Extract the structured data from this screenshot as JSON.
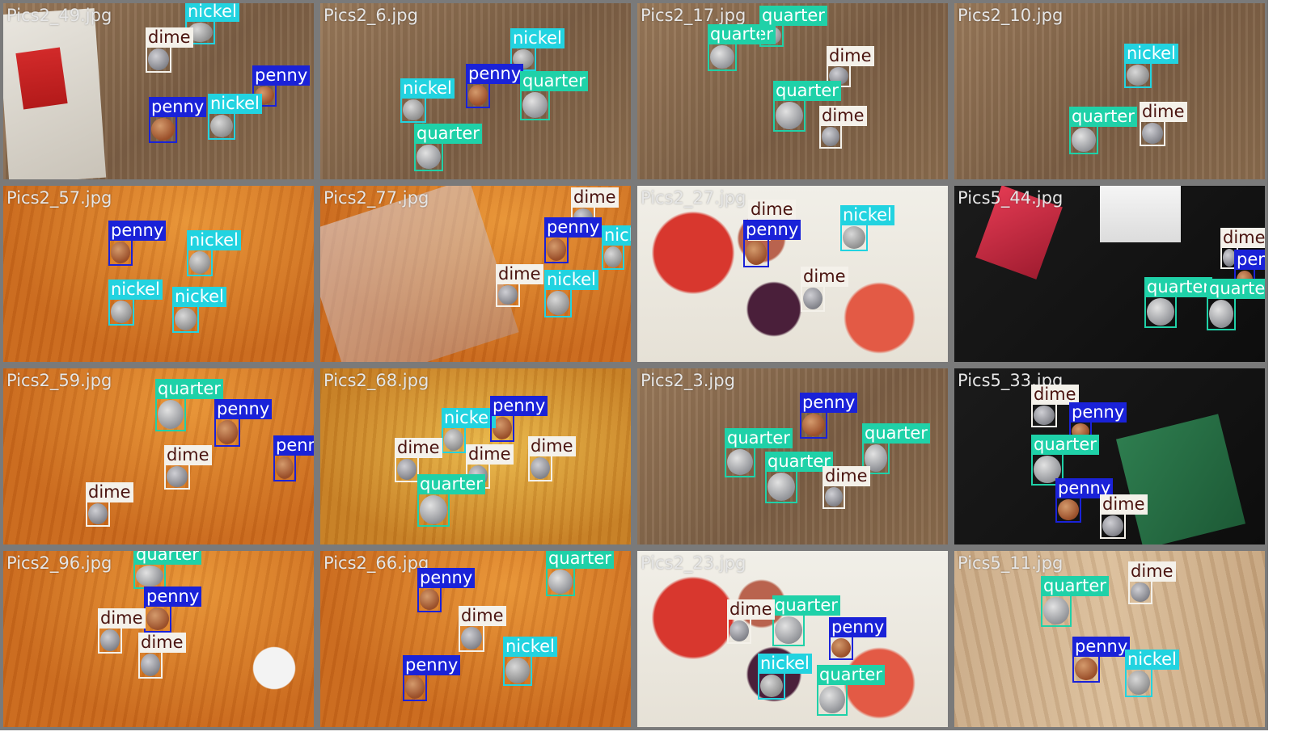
{
  "classes": {
    "penny": {
      "color": "#1a22d8",
      "text": "#ffffff"
    },
    "nickel": {
      "color": "#22d3e0",
      "text": "#ffffff"
    },
    "quarter": {
      "color": "#1fd1a8",
      "text": "#ffffff"
    },
    "dime": {
      "color": "#f4f1ea",
      "text": "#4a1410"
    }
  },
  "tiles": [
    {
      "filename": "Pics2_49.jpg",
      "background": "wood-brown",
      "detections": [
        {
          "label": "nickel"
        },
        {
          "label": "dime"
        },
        {
          "label": "penny"
        },
        {
          "label": "penny"
        },
        {
          "label": "nickel"
        }
      ]
    },
    {
      "filename": "Pics2_6.jpg",
      "background": "wood-brown",
      "detections": [
        {
          "label": "nickel"
        },
        {
          "label": "penny"
        },
        {
          "label": "quarter"
        },
        {
          "label": "nickel"
        },
        {
          "label": "quarter"
        }
      ]
    },
    {
      "filename": "Pics2_17.jpg",
      "background": "wood-brown",
      "detections": [
        {
          "label": "quarter"
        },
        {
          "label": "quarter"
        },
        {
          "label": "dime"
        },
        {
          "label": "quarter"
        },
        {
          "label": "dime"
        }
      ]
    },
    {
      "filename": "Pics2_10.jpg",
      "background": "wood-brown",
      "detections": [
        {
          "label": "nickel"
        },
        {
          "label": "quarter"
        },
        {
          "label": "dime"
        }
      ]
    },
    {
      "filename": "Pics2_57.jpg",
      "background": "wood-orange",
      "detections": [
        {
          "label": "penny"
        },
        {
          "label": "nickel"
        },
        {
          "label": "nickel"
        },
        {
          "label": "nickel"
        }
      ]
    },
    {
      "filename": "Pics2_77.jpg",
      "background": "wood-orange",
      "detections": [
        {
          "label": "dime"
        },
        {
          "label": "penny"
        },
        {
          "label": "nickel"
        },
        {
          "label": "dime"
        },
        {
          "label": "nickel"
        }
      ]
    },
    {
      "filename": "Pics2_27.jpg",
      "background": "flyer",
      "detections": [
        {
          "label": "dime"
        },
        {
          "label": "nickel"
        },
        {
          "label": "penny"
        },
        {
          "label": "dime"
        }
      ]
    },
    {
      "filename": "Pics5_44.jpg",
      "background": "black",
      "detections": [
        {
          "label": "dime"
        },
        {
          "label": "penny"
        },
        {
          "label": "quarter"
        },
        {
          "label": "quarter"
        }
      ]
    },
    {
      "filename": "Pics2_59.jpg",
      "background": "wood-orange",
      "detections": [
        {
          "label": "quarter"
        },
        {
          "label": "penny"
        },
        {
          "label": "penny"
        },
        {
          "label": "dime"
        },
        {
          "label": "dime"
        }
      ]
    },
    {
      "filename": "Pics2_68.jpg",
      "background": "wood-yellow",
      "detections": [
        {
          "label": "nickel"
        },
        {
          "label": "penny"
        },
        {
          "label": "dime"
        },
        {
          "label": "dime"
        },
        {
          "label": "dime"
        },
        {
          "label": "quarter"
        }
      ]
    },
    {
      "filename": "Pics2_3.jpg",
      "background": "wood-brown",
      "detections": [
        {
          "label": "penny"
        },
        {
          "label": "quarter"
        },
        {
          "label": "quarter"
        },
        {
          "label": "quarter"
        },
        {
          "label": "dime"
        }
      ]
    },
    {
      "filename": "Pics5_33.jpg",
      "background": "black",
      "detections": [
        {
          "label": "dime"
        },
        {
          "label": "penny"
        },
        {
          "label": "quarter"
        },
        {
          "label": "penny"
        },
        {
          "label": "dime"
        }
      ]
    },
    {
      "filename": "Pics2_96.jpg",
      "background": "wood-orange",
      "detections": [
        {
          "label": "quarter"
        },
        {
          "label": "penny"
        },
        {
          "label": "dime"
        },
        {
          "label": "dime"
        }
      ]
    },
    {
      "filename": "Pics2_66.jpg",
      "background": "wood-orange",
      "detections": [
        {
          "label": "quarter"
        },
        {
          "label": "penny"
        },
        {
          "label": "dime"
        },
        {
          "label": "penny"
        },
        {
          "label": "nickel"
        }
      ]
    },
    {
      "filename": "Pics2_23.jpg",
      "background": "flyer",
      "detections": [
        {
          "label": "quarter"
        },
        {
          "label": "dime"
        },
        {
          "label": "penny"
        },
        {
          "label": "nickel"
        },
        {
          "label": "quarter"
        }
      ]
    },
    {
      "filename": "Pics5_11.jpg",
      "background": "wood-light",
      "detections": [
        {
          "label": "quarter"
        },
        {
          "label": "dime"
        },
        {
          "label": "penny"
        },
        {
          "label": "nickel"
        }
      ]
    }
  ]
}
